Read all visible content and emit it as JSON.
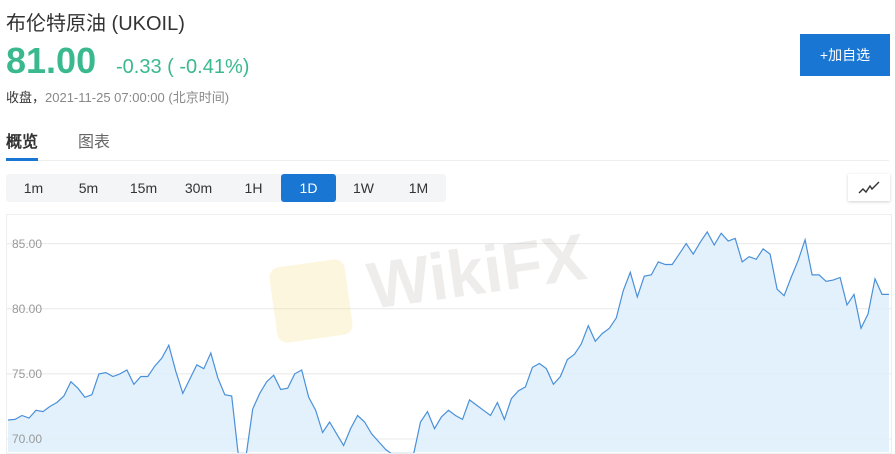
{
  "header": {
    "title": "布伦特原油  (UKOIL)",
    "price": "81.00",
    "change": "-0.33 ( -0.41%)",
    "status_label": "收盘，",
    "timestamp": "2021-11-25 07:00:00  (北京时间)",
    "add_button": "+加自选"
  },
  "tabs": [
    {
      "label": "概览",
      "active": true
    },
    {
      "label": "图表",
      "active": false
    }
  ],
  "periods": [
    {
      "label": "1m"
    },
    {
      "label": "5m"
    },
    {
      "label": "15m"
    },
    {
      "label": "30m"
    },
    {
      "label": "1H"
    },
    {
      "label": "1D",
      "active": true
    },
    {
      "label": "1W"
    },
    {
      "label": "1M"
    }
  ],
  "chart_type_icon": "line-chart-icon",
  "watermark": "WikiFX",
  "colors": {
    "accent": "#1976d2",
    "up_down": "#3bb98e",
    "line": "#4a90d9",
    "fill": "#deeefc"
  },
  "chart_data": {
    "type": "area",
    "title": "",
    "xlabel": "",
    "ylabel": "",
    "ylim": [
      69,
      87.2
    ],
    "yticks": [
      "70.00",
      "75.00",
      "80.00",
      "85.00"
    ],
    "grid": true,
    "values": [
      71.46,
      71.5,
      71.8,
      71.6,
      72.2,
      72.1,
      72.5,
      72.8,
      73.3,
      74.4,
      73.9,
      73.2,
      73.4,
      75.0,
      75.1,
      74.8,
      75.0,
      75.3,
      74.2,
      74.8,
      74.8,
      75.6,
      76.2,
      77.2,
      75.2,
      73.5,
      74.6,
      75.7,
      75.4,
      76.6,
      74.7,
      73.4,
      73.3,
      68.5,
      68.5,
      72.3,
      73.5,
      74.4,
      74.9,
      73.8,
      73.9,
      75.0,
      75.3,
      73.2,
      72.2,
      70.5,
      71.3,
      70.4,
      69.5,
      70.8,
      71.8,
      71.3,
      70.4,
      69.8,
      69.2,
      68.8,
      68.5,
      68.6,
      68.8,
      71.3,
      72.1,
      70.8,
      71.7,
      72.2,
      71.8,
      71.5,
      73.0,
      72.6,
      72.2,
      71.8,
      72.8,
      71.5,
      73.1,
      73.7,
      74.0,
      75.5,
      75.8,
      75.4,
      74.2,
      74.8,
      76.1,
      76.5,
      77.3,
      78.7,
      77.5,
      78.1,
      78.5,
      79.3,
      81.4,
      82.8,
      80.9,
      82.5,
      82.6,
      83.6,
      83.4,
      83.4,
      84.2,
      85.0,
      84.2,
      85.1,
      85.9,
      84.9,
      85.8,
      85.2,
      85.4,
      83.6,
      84.0,
      83.8,
      84.6,
      84.2,
      81.5,
      81.0,
      82.4,
      83.7,
      85.3,
      82.6,
      82.6,
      82.1,
      82.2,
      82.4,
      80.3,
      81.1,
      78.5,
      79.6,
      82.3,
      81.1,
      81.1
    ]
  }
}
